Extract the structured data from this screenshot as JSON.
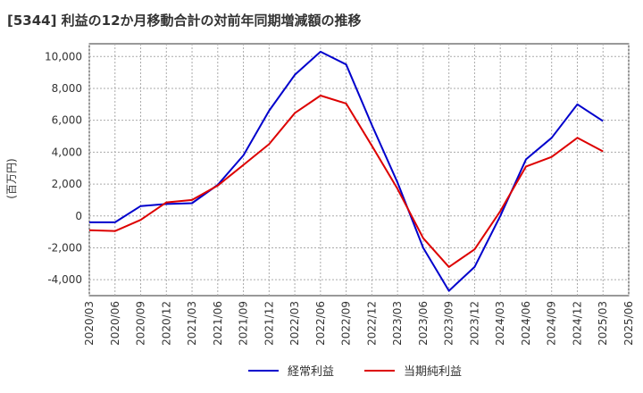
{
  "chart_data": {
    "type": "line",
    "title": "[5344]  利益の12か月移動合計の対前年同期増減額の推移",
    "ylabel": "(百万円)",
    "xlabel": "",
    "ylim": [
      -5000,
      10800
    ],
    "yticks": [
      -4000,
      -2000,
      0,
      2000,
      4000,
      6000,
      8000,
      10000
    ],
    "ytick_labels": [
      "-4,000",
      "-2,000",
      "0",
      "2,000",
      "4,000",
      "6,000",
      "8,000",
      "10,000"
    ],
    "categories": [
      "2020/03",
      "2020/06",
      "2020/09",
      "2020/12",
      "2021/03",
      "2021/06",
      "2021/09",
      "2021/12",
      "2022/03",
      "2022/06",
      "2022/09",
      "2022/12",
      "2023/03",
      "2023/06",
      "2023/09",
      "2023/12",
      "2024/03",
      "2024/06",
      "2024/09",
      "2024/12",
      "2025/03",
      "2025/06"
    ],
    "series": [
      {
        "name": "経常利益",
        "color": "#0000cc",
        "values": [
          -400,
          -400,
          620,
          750,
          800,
          1950,
          3800,
          6600,
          8850,
          10300,
          9500,
          5700,
          2100,
          -2000,
          -4700,
          -3200,
          0,
          3550,
          4900,
          7000,
          5950,
          null
        ]
      },
      {
        "name": "当期純利益",
        "color": "#dd0000",
        "values": [
          -900,
          -950,
          -250,
          850,
          1000,
          1900,
          3200,
          4500,
          6450,
          7550,
          7050,
          4400,
          1700,
          -1400,
          -3200,
          -2100,
          300,
          3100,
          3700,
          4900,
          4050,
          null
        ]
      }
    ],
    "grid": true,
    "legend": "bottom-center"
  }
}
